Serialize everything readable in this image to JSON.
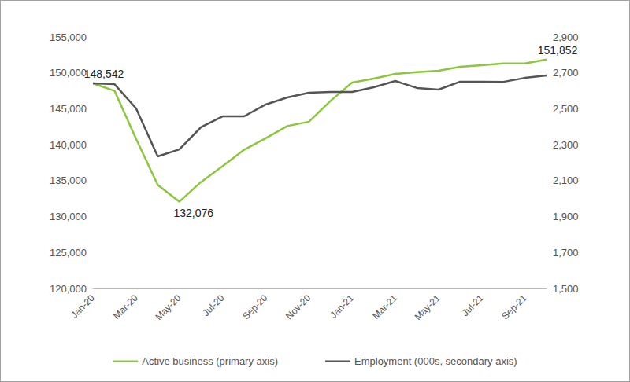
{
  "chart_data": {
    "type": "line",
    "categories": [
      "Jan-20",
      null,
      "Mar-20",
      null,
      "May-20",
      null,
      "Jul-20",
      null,
      "Sep-20",
      null,
      "Nov-20",
      null,
      "Jan-21",
      null,
      "Mar-21",
      null,
      "May-21",
      null,
      "Jul-21",
      null,
      "Sep-21",
      null
    ],
    "series": [
      {
        "name": "Active business (primary axis)",
        "color": "#8cc63f",
        "values": [
          148542,
          147500,
          140800,
          134400,
          132076,
          134800,
          137000,
          139300,
          140900,
          142600,
          143200,
          146100,
          148650,
          149200,
          149850,
          150100,
          150300,
          150850,
          151050,
          151300,
          151300,
          151852
        ],
        "value_labels": [
          "148,542",
          null,
          null,
          null,
          "132,076",
          null,
          null,
          null,
          null,
          null,
          null,
          null,
          null,
          null,
          null,
          null,
          null,
          null,
          null,
          null,
          null,
          "151,852"
        ]
      },
      {
        "name": "Employment (000s, secondary axis)",
        "color": "#555555",
        "axis": "y2",
        "values": [
          2642,
          2637,
          2502,
          2235,
          2274,
          2397,
          2458,
          2458,
          2524,
          2563,
          2589,
          2594,
          2594,
          2620,
          2655,
          2616,
          2607,
          2651,
          2651,
          2650,
          2672,
          2686
        ]
      }
    ],
    "ylim": [
      120000,
      155000
    ],
    "yticks": [
      {
        "value": 120000,
        "label": "120,000"
      },
      {
        "value": 125000,
        "label": "125,000"
      },
      {
        "value": 130000,
        "label": "130,000"
      },
      {
        "value": 135000,
        "label": "135,000"
      },
      {
        "value": 140000,
        "label": "140,000"
      },
      {
        "value": 145000,
        "label": "145,000"
      },
      {
        "value": 150000,
        "label": "150,000"
      },
      {
        "value": 155000,
        "label": "155,000"
      }
    ],
    "y2lim": [
      1500,
      2900
    ],
    "y2ticks": [
      {
        "value": 1500,
        "label": "1,500"
      },
      {
        "value": 1700,
        "label": "1,700"
      },
      {
        "value": 1900,
        "label": "1,900"
      },
      {
        "value": 2100,
        "label": "2,100"
      },
      {
        "value": 2300,
        "label": "2,300"
      },
      {
        "value": 2500,
        "label": "2,500"
      },
      {
        "value": 2700,
        "label": "2,700"
      },
      {
        "value": 2900,
        "label": "2,900"
      }
    ],
    "grid": false,
    "legend": "bottom"
  }
}
